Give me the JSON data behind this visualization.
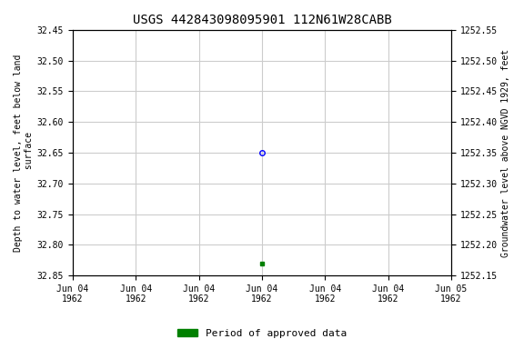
{
  "title": "USGS 442843098095901 112N61W28CABB",
  "title_fontsize": 10,
  "ylabel_left": "Depth to water level, feet below land\n surface",
  "ylabel_right": "Groundwater level above NGVD 1929, feet",
  "ylim_left": [
    32.85,
    32.45
  ],
  "ylim_right": [
    1252.15,
    1252.55
  ],
  "yticks_left": [
    32.45,
    32.5,
    32.55,
    32.6,
    32.65,
    32.7,
    32.75,
    32.8,
    32.85
  ],
  "yticks_right": [
    1252.55,
    1252.5,
    1252.45,
    1252.4,
    1252.35,
    1252.3,
    1252.25,
    1252.2,
    1252.15
  ],
  "data_point_y": 32.65,
  "data_point_color": "#0000ff",
  "data_point_marker_size": 4,
  "green_dot_y": 32.83,
  "green_dot_color": "#008000",
  "green_dot_size": 3,
  "xdate_start_hours": 0,
  "xdate_end_hours": 24,
  "xtick_hours": [
    0,
    4,
    8,
    12,
    16,
    20,
    24
  ],
  "xtick_labels": [
    "Jun 04\n1962",
    "Jun 04\n1962",
    "Jun 04\n1962",
    "Jun 04\n1962",
    "Jun 04\n1962",
    "Jun 04\n1962",
    "Jun 05\n1962"
  ],
  "data_x_hours": 12,
  "grid_color": "#cccccc",
  "background_color": "#ffffff",
  "font_family": "monospace",
  "font_size_ticks": 7,
  "font_size_label": 7,
  "font_size_legend": 8,
  "legend_label": "Period of approved data",
  "legend_color": "#008000"
}
